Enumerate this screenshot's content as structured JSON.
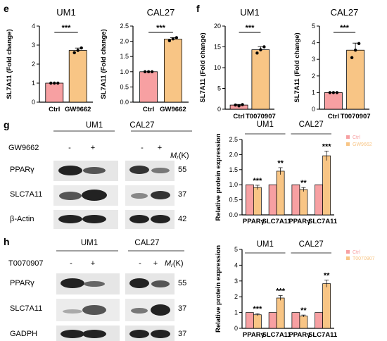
{
  "colors": {
    "ctrl": "#f7a0a2",
    "treat": "#f8c585",
    "axis": "#000000"
  },
  "panels": {
    "e": "e",
    "f": "f",
    "g": "g",
    "h": "h"
  },
  "chart_data": [
    {
      "id": "e1",
      "type": "bar",
      "title": "UM1",
      "ylabel": "SL7A11 (Fold change)",
      "categories": [
        "Ctrl",
        "GW9662"
      ],
      "values": [
        1.0,
        2.72
      ],
      "points": [
        [
          1.0,
          1.0,
          1.0
        ],
        [
          2.6,
          2.72,
          2.85
        ]
      ],
      "ylim": [
        0,
        4
      ],
      "yticks": [
        "0",
        "1",
        "2",
        "3",
        "4"
      ],
      "sig": "***"
    },
    {
      "id": "e2",
      "type": "bar",
      "title": "CAL27",
      "ylabel": "SL7A11 (Fold change)",
      "categories": [
        "Ctrl",
        "GW9662"
      ],
      "values": [
        1.0,
        2.07
      ],
      "points": [
        [
          1.0,
          1.0,
          1.0
        ],
        [
          2.02,
          2.08,
          2.12
        ]
      ],
      "ylim": [
        0,
        2.5
      ],
      "yticks": [
        "0.0",
        "0.5",
        "1.0",
        "1.5",
        "2.0",
        "2.5"
      ],
      "sig": "***"
    },
    {
      "id": "f1",
      "type": "bar",
      "title": "UM1",
      "ylabel": "SL7A11 (Fold change)",
      "categories": [
        "Ctrl",
        "T0070907"
      ],
      "values": [
        1.0,
        14.3
      ],
      "points": [
        [
          1.0,
          0.8,
          1.1
        ],
        [
          13.5,
          14.3,
          15.0
        ]
      ],
      "ylim": [
        0,
        20
      ],
      "yticks": [
        "0",
        "5",
        "10",
        "15",
        "20"
      ],
      "sig": "***"
    },
    {
      "id": "f2",
      "type": "bar",
      "title": "CAL27",
      "ylabel": "SL7A11 (Fold change)",
      "categories": [
        "Ctrl",
        "T0070907"
      ],
      "values": [
        1.0,
        3.55
      ],
      "points": [
        [
          1.0,
          1.0,
          1.0
        ],
        [
          3.1,
          3.55,
          3.95
        ]
      ],
      "ylim": [
        0,
        5
      ],
      "yticks": [
        "0",
        "1",
        "2",
        "3",
        "4",
        "5"
      ],
      "sig": "***"
    },
    {
      "id": "g",
      "type": "bar",
      "ylabel": "Relative protein expression",
      "groups": [
        "UM1",
        "CAL27"
      ],
      "categories": [
        "PPARγ",
        "SLC7A11",
        "PPARγ",
        "SLC7A11"
      ],
      "series": [
        {
          "name": "Ctrl",
          "values": [
            1,
            1,
            1,
            1
          ]
        },
        {
          "name": "GW9662",
          "values": [
            0.91,
            1.45,
            0.84,
            1.96
          ]
        }
      ],
      "ylim": [
        0,
        2.5
      ],
      "yticks": [
        "0.0",
        "0.5",
        "1.0",
        "1.5",
        "2.0",
        "2.5"
      ],
      "sig": [
        "***",
        "**",
        "**",
        "***"
      ]
    },
    {
      "id": "h",
      "type": "bar",
      "ylabel": "Relative protein expression",
      "groups": [
        "UM1",
        "CAL27"
      ],
      "categories": [
        "PPARγ",
        "SLC7A11",
        "PPARγ",
        "SLC7A11"
      ],
      "series": [
        {
          "name": "Ctrl",
          "values": [
            1,
            1,
            1,
            1
          ]
        },
        {
          "name": "T0070907",
          "values": [
            0.86,
            1.92,
            0.78,
            2.83
          ]
        }
      ],
      "ylim": [
        0,
        5
      ],
      "yticks": [
        "0",
        "1",
        "2",
        "3",
        "4",
        "5"
      ],
      "sig": [
        "***",
        "***",
        "**",
        "**"
      ]
    }
  ],
  "blots": {
    "g": {
      "cells": [
        "UM1",
        "CAL27"
      ],
      "treatment": "GW9662",
      "signs": [
        "-",
        "+",
        "-",
        "+"
      ],
      "mr": "M",
      "mr_sub": "r",
      "mr_unit": "(K)",
      "rows": [
        {
          "label": "PPARγ",
          "kd": "55"
        },
        {
          "label": "SLC7A11",
          "kd": "37"
        },
        {
          "label": "β-Actin",
          "kd": "42"
        }
      ]
    },
    "h": {
      "cells": [
        "UM1",
        "CAL27"
      ],
      "treatment": "T0070907",
      "signs": [
        "-",
        "+",
        "-",
        "+"
      ],
      "mr": "M",
      "mr_sub": "r",
      "mr_unit": "(K)",
      "rows": [
        {
          "label": "PPARγ",
          "kd": "55"
        },
        {
          "label": "SLC7A11",
          "kd": "37"
        },
        {
          "label": "GADPH",
          "kd": "37"
        }
      ]
    }
  }
}
